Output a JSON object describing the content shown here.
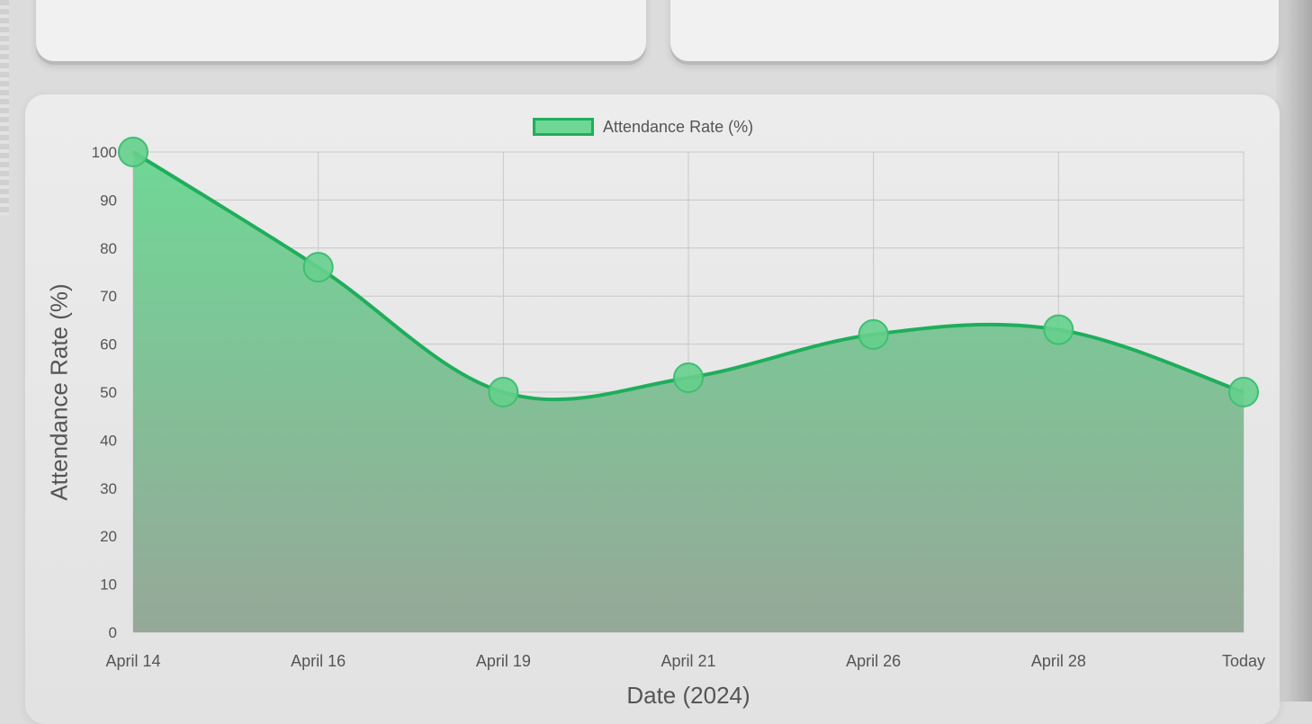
{
  "top_cards": [
    {},
    {}
  ],
  "chart_data": {
    "type": "area",
    "x": [
      "April 14",
      "April 16",
      "April 19",
      "April 21",
      "April 26",
      "April 28",
      "Today"
    ],
    "series": [
      {
        "name": "Attendance Rate (%)",
        "values": [
          100,
          76,
          50,
          53,
          62,
          63,
          50
        ]
      }
    ],
    "xlabel": "Date (2024)",
    "ylabel": "Attendance Rate (%)",
    "ylim": [
      0,
      100
    ],
    "yticks": [
      0,
      10,
      20,
      30,
      40,
      50,
      60,
      70,
      80,
      90,
      100
    ],
    "grid": true,
    "legend": "top-center",
    "colors": {
      "line": "#1fae5b",
      "fill_top": "#6fd796",
      "fill_bottom": "#96a898",
      "point": "#66cf8c"
    }
  }
}
